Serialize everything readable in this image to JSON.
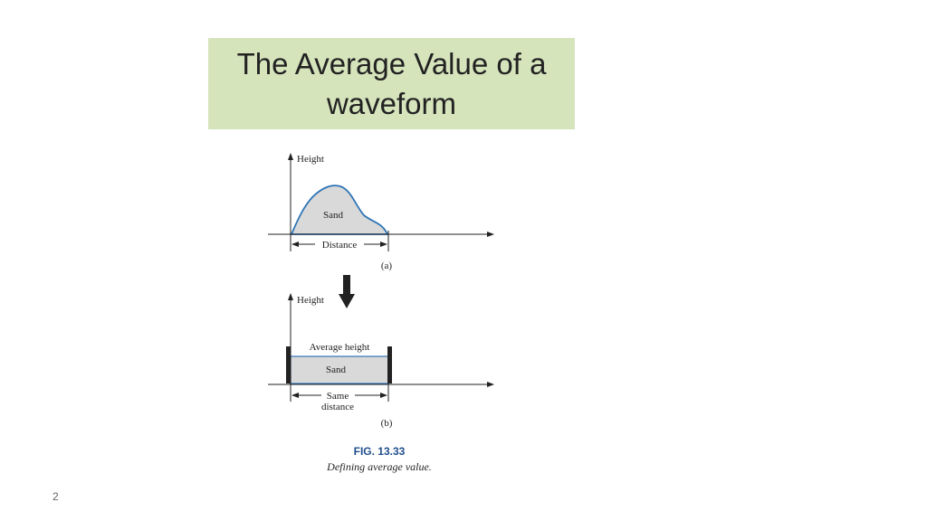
{
  "slide": {
    "title_line1": "The Average Value of a",
    "title_line2": "waveform",
    "number": "2"
  },
  "figure": {
    "panel_a": {
      "y_axis_label": "Height",
      "area_label": "Sand",
      "width_label": "Distance",
      "caption": "(a)"
    },
    "panel_b": {
      "y_axis_label": "Height",
      "level_label": "Average height",
      "area_label": "Sand",
      "width_label_line1": "Same",
      "width_label_line2": "distance",
      "caption": "(b)"
    },
    "fig_number": "FIG. 13.33",
    "fig_caption": "Defining average value."
  },
  "colors": {
    "title_background": "#d6e4bc",
    "curve_stroke": "#2e75b6",
    "sand_fill": "#d9d9d9",
    "fig_number": "#1f4e8c"
  }
}
